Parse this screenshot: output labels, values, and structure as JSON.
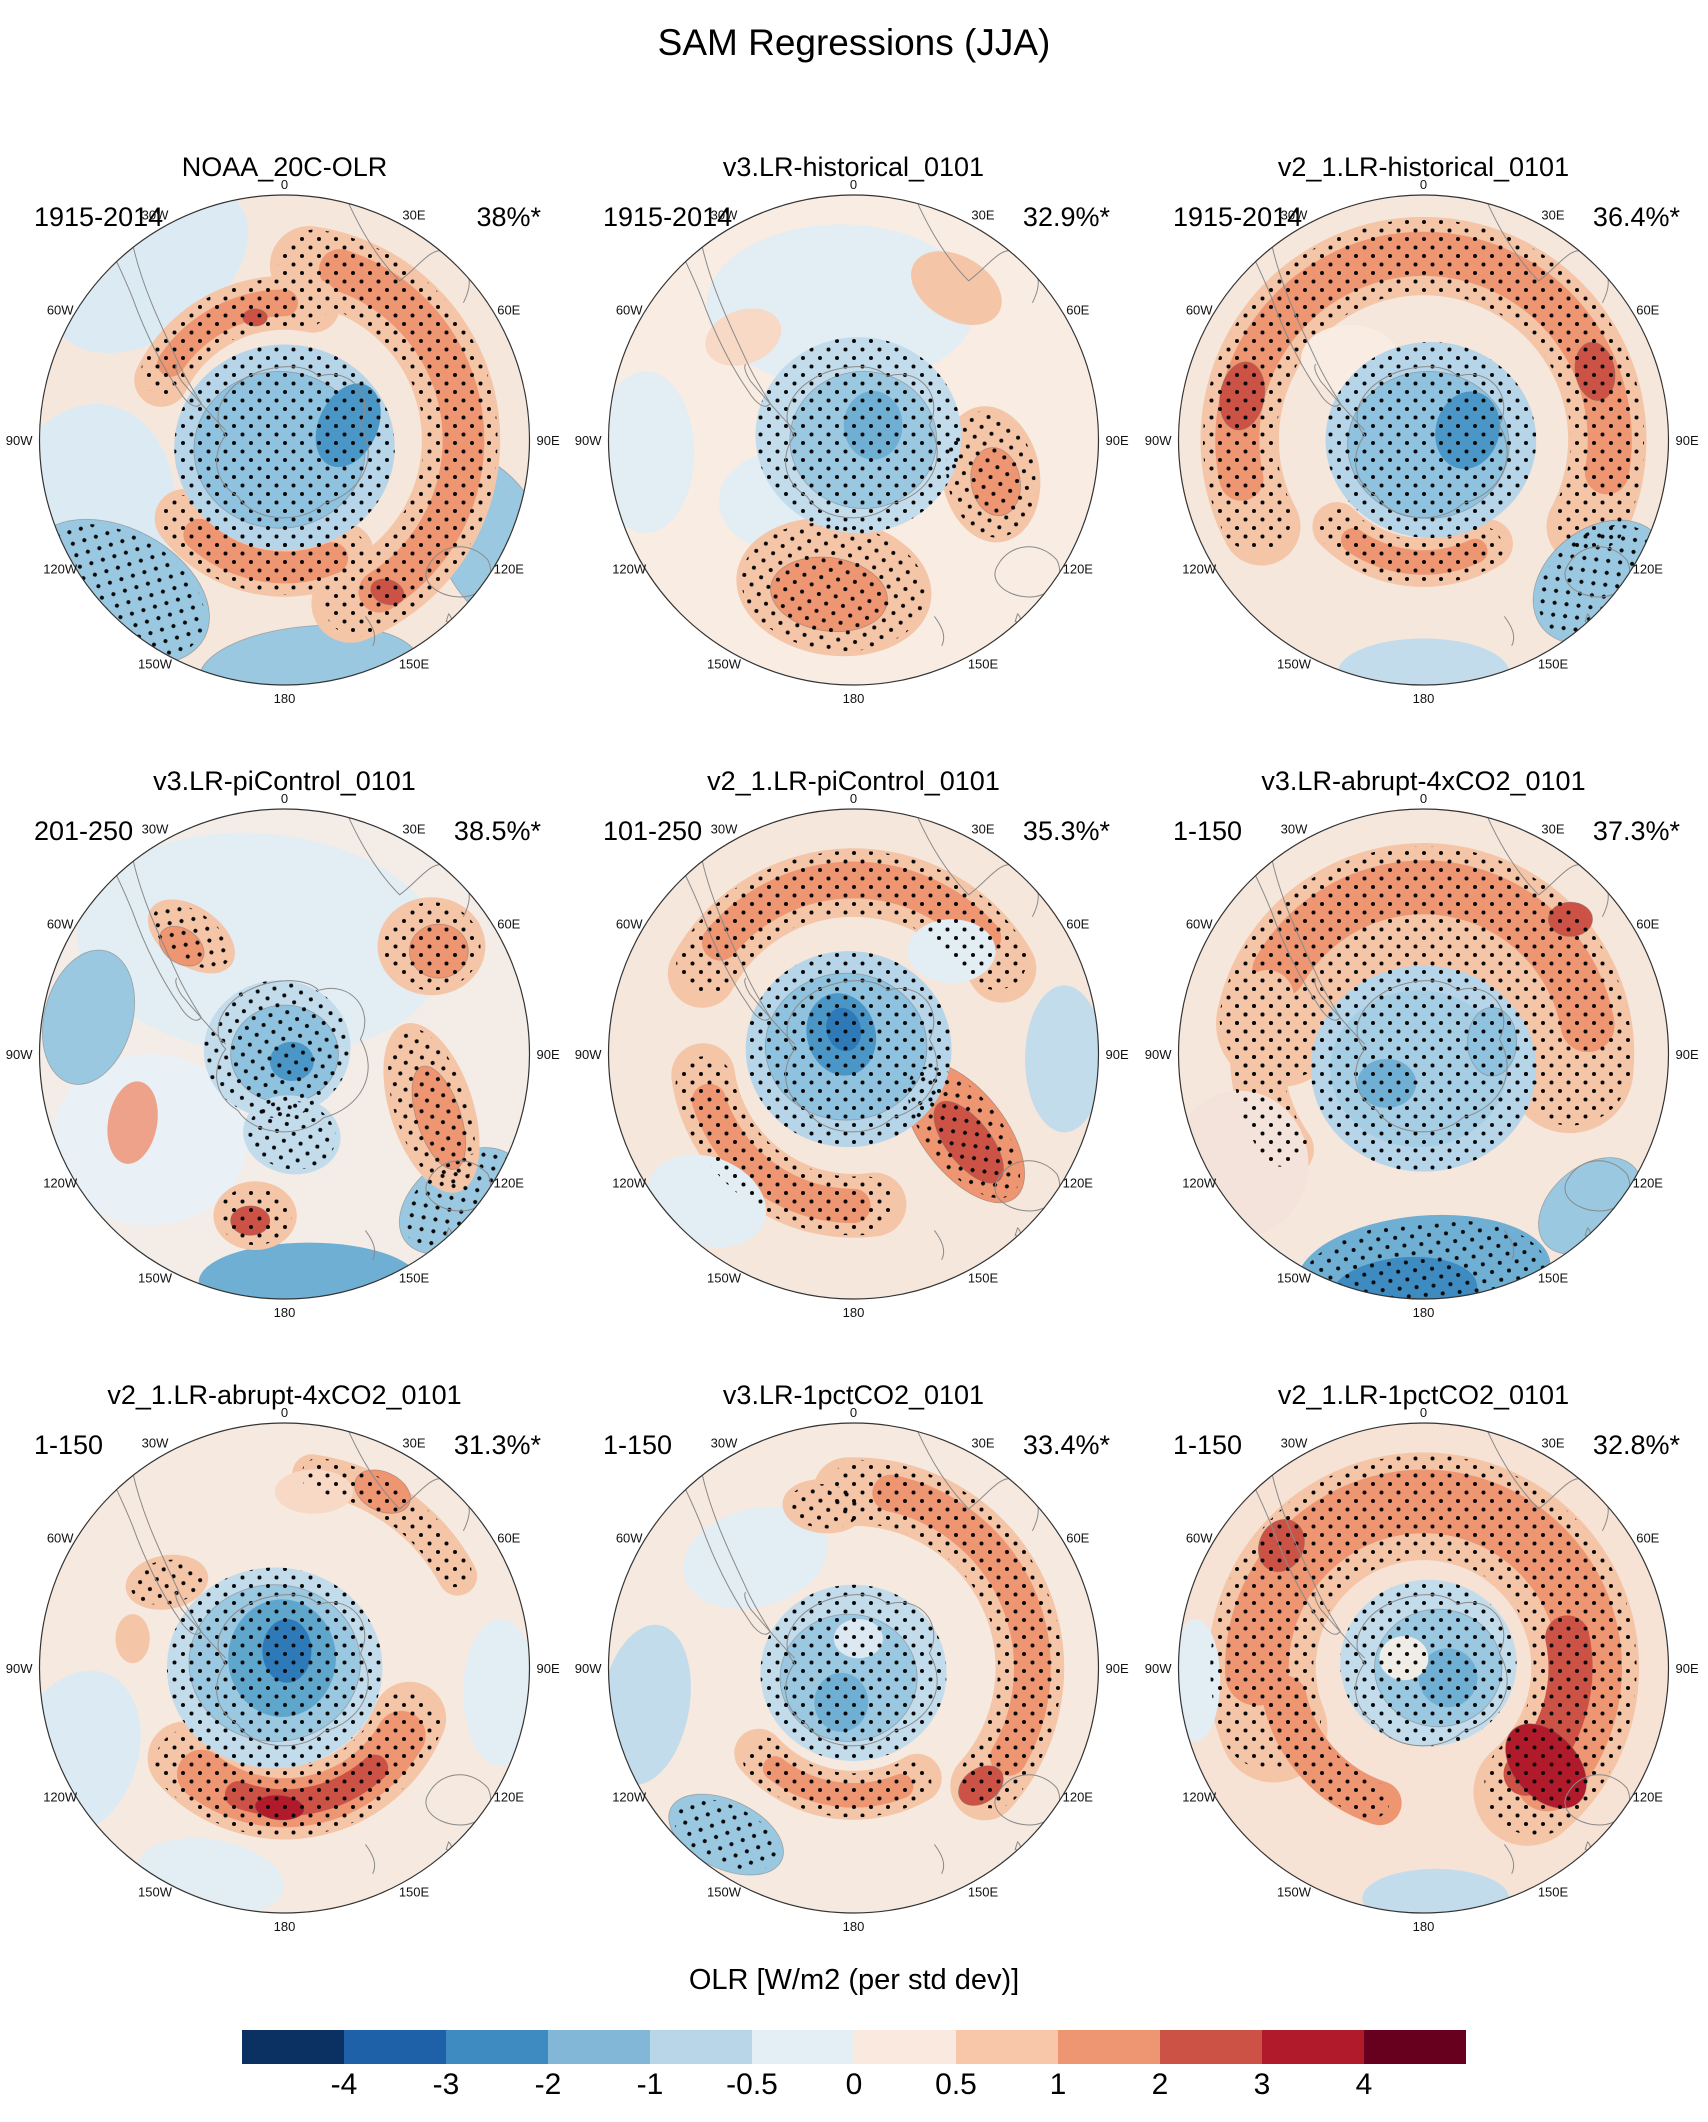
{
  "title": "SAM Regressions (JJA)",
  "lon_labels": [
    "0",
    "30E",
    "60E",
    "90E",
    "120E",
    "150E",
    "180",
    "150W",
    "120W",
    "90W",
    "60W",
    "30W"
  ],
  "panels": [
    {
      "title": "NOAA_20C-OLR",
      "period": "1915-2014",
      "variance": "38%*"
    },
    {
      "title": "v3.LR-historical_0101",
      "period": "1915-2014",
      "variance": "32.9%*"
    },
    {
      "title": "v2_1.LR-historical_0101",
      "period": "1915-2014",
      "variance": "36.4%*"
    },
    {
      "title": "v3.LR-piControl_0101",
      "period": "201-250",
      "variance": "38.5%*"
    },
    {
      "title": "v2_1.LR-piControl_0101",
      "period": "101-250",
      "variance": "35.3%*"
    },
    {
      "title": "v3.LR-abrupt-4xCO2_0101",
      "period": "1-150",
      "variance": "37.3%*"
    },
    {
      "title": "v2_1.LR-abrupt-4xCO2_0101",
      "period": "1-150",
      "variance": "31.3%*"
    },
    {
      "title": "v3.LR-1pctCO2_0101",
      "period": "1-150",
      "variance": "33.4%*"
    },
    {
      "title": "v2_1.LR-1pctCO2_0101",
      "period": "1-150",
      "variance": "32.8%*"
    }
  ],
  "colorbar": {
    "label": "OLR [W/m2 (per std dev)]",
    "ticks": [
      "-4",
      "-3",
      "-2",
      "-1",
      "-0.5",
      "0",
      "0.5",
      "1",
      "2",
      "3",
      "4"
    ],
    "colors": [
      "#0b3162",
      "#1f61a9",
      "#3d8bc0",
      "#82b7d7",
      "#b9d6e8",
      "#e4eef5",
      "#f9e9df",
      "#f8c7aa",
      "#ee9572",
      "#cd5246",
      "#b11a2b",
      "#67001f"
    ]
  },
  "chart_data": {
    "type": "heatmap",
    "title": "SAM Regressions (JJA)",
    "value_label": "OLR [W/m2 (per std dev)]",
    "projection": "south polar stereographic",
    "grid": {
      "rows": 3,
      "cols": 3
    },
    "colorbar_levels": [
      -4,
      -3,
      -2,
      -1,
      -0.5,
      0,
      0.5,
      1,
      2,
      3,
      4
    ],
    "colorbar_colors": [
      "#0b3162",
      "#1f61a9",
      "#3d8bc0",
      "#82b7d7",
      "#b9d6e8",
      "#e4eef5",
      "#f9e9df",
      "#f8c7aa",
      "#ee9572",
      "#cd5246",
      "#b11a2b",
      "#67001f"
    ],
    "longitude_ring_labels": [
      "0",
      "30E",
      "60E",
      "90E",
      "120E",
      "150E",
      "180",
      "150W",
      "120W",
      "90W",
      "60W",
      "30W"
    ],
    "panels": [
      {
        "name": "NOAA_20C-OLR",
        "period": "1915-2014",
        "variance_explained_pct": 38.0,
        "has_asterisk": true
      },
      {
        "name": "v3.LR-historical_0101",
        "period": "1915-2014",
        "variance_explained_pct": 32.9,
        "has_asterisk": true
      },
      {
        "name": "v2_1.LR-historical_0101",
        "period": "1915-2014",
        "variance_explained_pct": 36.4,
        "has_asterisk": true
      },
      {
        "name": "v3.LR-piControl_0101",
        "period": "201-250",
        "variance_explained_pct": 38.5,
        "has_asterisk": true
      },
      {
        "name": "v2_1.LR-piControl_0101",
        "period": "101-250",
        "variance_explained_pct": 35.3,
        "has_asterisk": true
      },
      {
        "name": "v3.LR-abrupt-4xCO2_0101",
        "period": "1-150",
        "variance_explained_pct": 37.3,
        "has_asterisk": true
      },
      {
        "name": "v2_1.LR-abrupt-4xCO2_0101",
        "period": "1-150",
        "variance_explained_pct": 31.3,
        "has_asterisk": true
      },
      {
        "name": "v3.LR-1pctCO2_0101",
        "period": "1-150",
        "variance_explained_pct": 33.4,
        "has_asterisk": true
      },
      {
        "name": "v2_1.LR-1pctCO2_0101",
        "period": "1-150",
        "variance_explained_pct": 32.8,
        "has_asterisk": true
      }
    ]
  }
}
